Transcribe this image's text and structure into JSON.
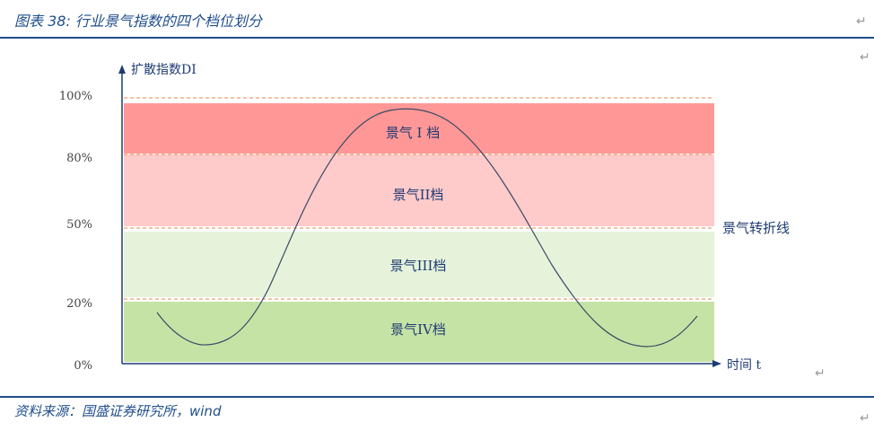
{
  "header": {
    "title": "图表 38:  行业景气指数的四个档位划分"
  },
  "footer": {
    "source": "资料来源：国盛证券研究所，wind"
  },
  "marks": {
    "return_symbol": "↵"
  },
  "diagram": {
    "y_axis_label": "扩散指数DI",
    "x_axis_label": "时间 t",
    "y_ticks": [
      "100%",
      "80%",
      "50%",
      "20%",
      "0%"
    ],
    "bands": [
      {
        "label": "景气 I 档",
        "color": "#ff9797",
        "from": 80,
        "to": 97
      },
      {
        "label": "景气II档",
        "color": "#ffcaca",
        "from": 50,
        "to": 80
      },
      {
        "label": "景气III档",
        "color": "#e6f3da",
        "from": 20,
        "to": 48
      },
      {
        "label": "景气IV档",
        "color": "#c6e3a6",
        "from": 0,
        "to": 19
      }
    ],
    "threshold_label": "景气转折线",
    "line_color": "#3a4a63",
    "dash_color": "#e08a4a"
  }
}
